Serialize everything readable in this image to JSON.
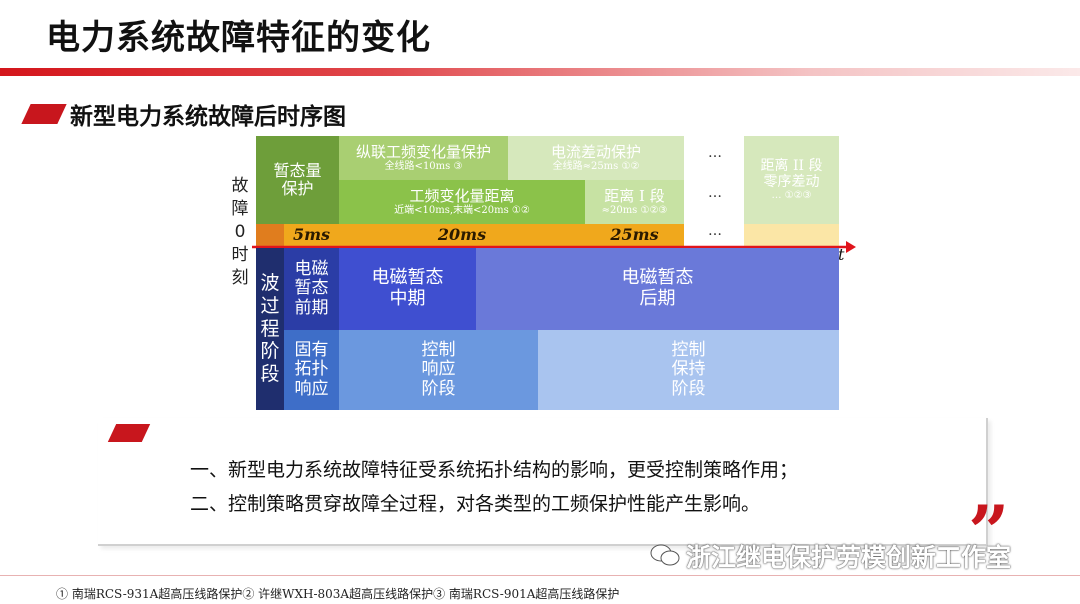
{
  "title": "电力系统故障特征的变化",
  "subtitle": "新型电力系统故障后时序图",
  "side_label": [
    "故",
    "障",
    "0",
    "时",
    "刻"
  ],
  "axis_label": "t",
  "protection": {
    "transient": [
      "暂态量",
      "保护"
    ],
    "longitudinal": "纵联工频变化量保护",
    "longitudinal_note": "全线路<10ms ③",
    "current_diff": "电流差动保护",
    "current_diff_note": "全线路≈25ms ①②",
    "freq_distance": "工频变化量距离",
    "freq_distance_note": "近端<10ms,末端<20ms ①②",
    "distance1": "距离 I 段",
    "distance1_note": "≈20ms ①②③",
    "dots": "…",
    "distance2": [
      "距离 II 段",
      "零序差动"
    ],
    "distance2_note": "… ①②③"
  },
  "timeline": {
    "t1": "5ms",
    "t2": "20ms",
    "t3": "25ms"
  },
  "stages": {
    "wave": [
      "波",
      "过",
      "程",
      "阶",
      "段"
    ],
    "early": [
      "电磁",
      "暂态",
      "前期"
    ],
    "middle": [
      "电磁暂态",
      "中期"
    ],
    "late": [
      "电磁暂态",
      "后期"
    ],
    "inherent": [
      "固有",
      "拓扑",
      "响应"
    ],
    "control_resp": [
      "控制",
      "响应",
      "阶段"
    ],
    "control_hold": [
      "控制",
      "保持",
      "阶段"
    ]
  },
  "bullets": [
    "一、新型电力系统故障特征受系统拓扑结构的影响，更受控制策略作用；",
    "二、控制策略贯穿故障全过程，对各类型的工频保护性能产生影响。"
  ],
  "watermark": "浙江继电保护劳模创新工作室",
  "footnote": "① 南瑞RCS-931A超高压线路保护② 许继WXH-803A超高压线路保护③ 南瑞RCS-901A超高压线路保护"
}
